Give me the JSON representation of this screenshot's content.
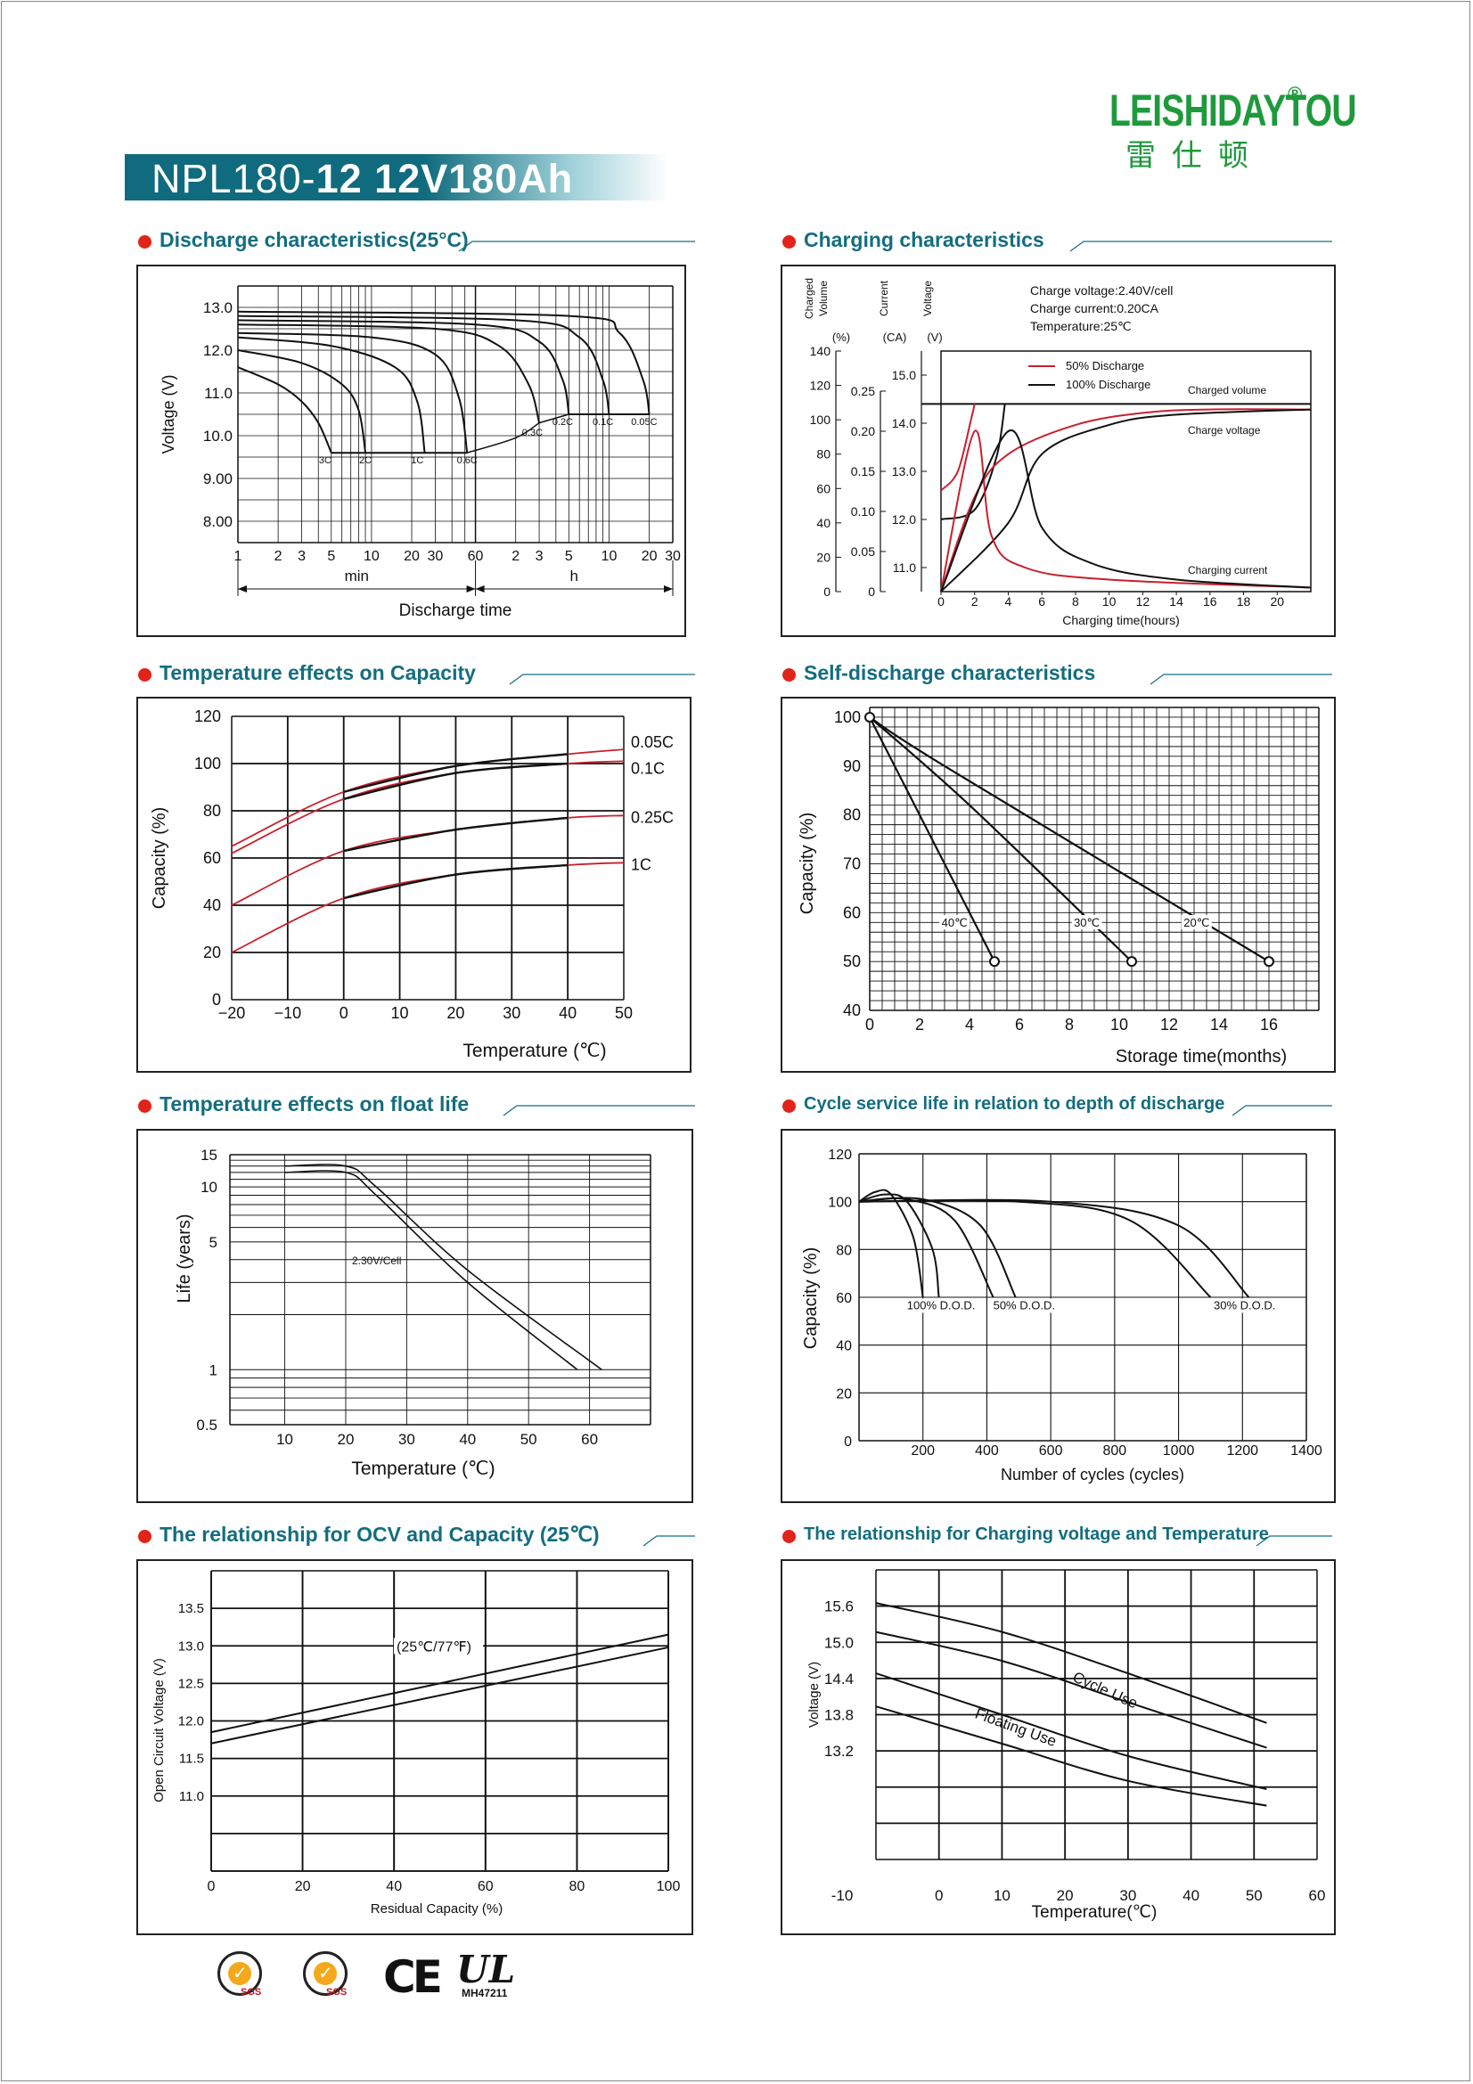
{
  "brand": {
    "logo_text": "LEISHIDAYTOU",
    "logo_mark": "®",
    "logo_cn": "雷仕顿"
  },
  "header": {
    "model": "NPL180-",
    "model_bold": "12 12V180Ah"
  },
  "colors": {
    "accent_teal": "#146d80",
    "bullet_red": "#e2231a",
    "curve_red": "#c8202c",
    "logo_green": "#1e9a3c"
  },
  "sections": {
    "discharge": "Discharge characteristics(25°C)",
    "charging": "Charging characteristics",
    "temp_capacity": "Temperature effects on Capacity",
    "self_discharge": "Self-discharge characteristics",
    "float_life": "Temperature effects on float life",
    "cycle_life": "Cycle service life in relation to depth of discharge",
    "ocv": "The relationship  for OCV and Capacity (25℃)",
    "charge_temp": "The relationship for Charging voltage and Temperature"
  },
  "chart_data": [
    {
      "id": "discharge",
      "type": "line",
      "ylabel": "Voltage (V)",
      "xlabel": "Discharge time",
      "x_unit_labels": [
        "min",
        "h"
      ],
      "xscale": "log",
      "xticks_min": [
        "1",
        "2",
        "3",
        "5",
        "10",
        "20",
        "30",
        "60"
      ],
      "xticks_h": [
        "2",
        "3",
        "5",
        "10",
        "20",
        "30"
      ],
      "yticks": [
        "13.0",
        "12.0",
        "11.0",
        "10.0",
        "9.00",
        "8.00"
      ],
      "ylim": [
        7.5,
        13.5
      ],
      "series": [
        {
          "name": "3C",
          "end_voltage": 9.6,
          "points": [
            [
              1,
              11.6
            ],
            [
              2,
              11.2
            ],
            [
              3,
              10.8
            ],
            [
              4,
              10.3
            ],
            [
              5,
              9.6
            ]
          ]
        },
        {
          "name": "2C",
          "end_voltage": 9.6,
          "points": [
            [
              1,
              12.0
            ],
            [
              3,
              11.7
            ],
            [
              6,
              11.2
            ],
            [
              8,
              10.6
            ],
            [
              9,
              9.6
            ]
          ]
        },
        {
          "name": "1C",
          "end_voltage": 9.6,
          "points": [
            [
              1,
              12.3
            ],
            [
              5,
              12.1
            ],
            [
              15,
              11.6
            ],
            [
              22,
              10.8
            ],
            [
              25,
              9.6
            ]
          ]
        },
        {
          "name": "0.6C",
          "end_voltage": 9.6,
          "points": [
            [
              1,
              12.4
            ],
            [
              10,
              12.3
            ],
            [
              30,
              11.9
            ],
            [
              45,
              10.9
            ],
            [
              52,
              9.6
            ]
          ]
        },
        {
          "name": "0.3C",
          "end_voltage": 10.3,
          "points": [
            [
              1,
              12.6
            ],
            [
              30,
              12.5
            ],
            [
              90,
              12.1
            ],
            [
              150,
              11.2
            ],
            [
              180,
              10.3
            ]
          ]
        },
        {
          "name": "0.2C",
          "end_voltage": 10.5,
          "points": [
            [
              1,
              12.7
            ],
            [
              60,
              12.6
            ],
            [
              180,
              12.2
            ],
            [
              270,
              11.3
            ],
            [
              300,
              10.5
            ]
          ]
        },
        {
          "name": "0.1C",
          "end_voltage": 10.5,
          "points": [
            [
              1,
              12.8
            ],
            [
              120,
              12.7
            ],
            [
              360,
              12.3
            ],
            [
              540,
              11.3
            ],
            [
              600,
              10.5
            ]
          ]
        },
        {
          "name": "0.05C",
          "end_voltage": 10.5,
          "points": [
            [
              1,
              12.9
            ],
            [
              300,
              12.8
            ],
            [
              720,
              12.4
            ],
            [
              1080,
              11.3
            ],
            [
              1200,
              10.5
            ]
          ]
        }
      ]
    },
    {
      "id": "charging",
      "type": "line",
      "xlabel": "Charging time(hours)",
      "xticks": [
        "0",
        "2",
        "4",
        "6",
        "8",
        "10",
        "12",
        "14",
        "16",
        "18",
        "20"
      ],
      "axis_labels": [
        "Charged Volume",
        "Current",
        "Voltage"
      ],
      "axis_units": [
        "(%)",
        "(CA)",
        "(V)"
      ],
      "y_volume_ticks": [
        "140",
        "120",
        "100",
        "80",
        "60",
        "40",
        "20",
        "0"
      ],
      "y_current_ticks": [
        "0.25",
        "0.20",
        "0.15",
        "0.10",
        "0.05",
        "0"
      ],
      "y_voltage_ticks": [
        "15.0",
        "14.0",
        "13.0",
        "12.0",
        "11.0"
      ],
      "notes": [
        "Charge voltage:2.40V/cell",
        "Charge current:0.20CA",
        "Temperature:25℃"
      ],
      "legend": [
        "50% Discharge",
        "100% Discharge"
      ],
      "curve_labels": [
        "Charged volume",
        "Charge voltage",
        "Charging current"
      ],
      "charge_voltage": 14.4,
      "charge_current": 0.2,
      "series": [
        {
          "name": "50% Discharge",
          "curve": "Charged volume",
          "points": [
            [
              0,
              0
            ],
            [
              2,
              55
            ],
            [
              4,
              80
            ],
            [
              8,
              97
            ],
            [
              12,
              104
            ],
            [
              16,
              106
            ],
            [
              22,
              106
            ]
          ]
        },
        {
          "name": "100% Discharge",
          "curve": "Charged volume",
          "points": [
            [
              0,
              0
            ],
            [
              4,
              40
            ],
            [
              6,
              80
            ],
            [
              10,
              97
            ],
            [
              14,
              103
            ],
            [
              22,
              106
            ]
          ]
        },
        {
          "name": "50% Discharge",
          "curve": "Charging current",
          "points": [
            [
              0,
              0
            ],
            [
              2,
              0.2
            ],
            [
              3,
              0.07
            ],
            [
              5,
              0.03
            ],
            [
              10,
              0.015
            ],
            [
              22,
              0.005
            ]
          ]
        },
        {
          "name": "100% Discharge",
          "curve": "Charging current",
          "points": [
            [
              0,
              0
            ],
            [
              4,
              0.2
            ],
            [
              6,
              0.08
            ],
            [
              9,
              0.035
            ],
            [
              14,
              0.015
            ],
            [
              22,
              0.005
            ]
          ]
        }
      ]
    },
    {
      "id": "temp_capacity",
      "type": "line",
      "xlabel": "Temperature (℃)",
      "ylabel": "Capacity  (%)",
      "xticks": [
        "-20",
        "-10",
        "0",
        "10",
        "20",
        "30",
        "40",
        "50"
      ],
      "yticks": [
        "0",
        "20",
        "40",
        "60",
        "80",
        "100",
        "120"
      ],
      "xlim": [
        -20,
        50
      ],
      "ylim": [
        0,
        120
      ],
      "series": [
        {
          "name": "0.05C",
          "points": [
            [
              -20,
              65
            ],
            [
              0,
              88
            ],
            [
              20,
              99
            ],
            [
              40,
              104
            ],
            [
              50,
              106
            ]
          ]
        },
        {
          "name": "0.1C",
          "points": [
            [
              -20,
              62
            ],
            [
              0,
              85
            ],
            [
              20,
              96
            ],
            [
              40,
              100
            ],
            [
              50,
              101
            ]
          ]
        },
        {
          "name": "0.25C",
          "points": [
            [
              -20,
              40
            ],
            [
              0,
              63
            ],
            [
              20,
              72
            ],
            [
              40,
              77
            ],
            [
              50,
              78
            ]
          ]
        },
        {
          "name": "1C",
          "points": [
            [
              -20,
              20
            ],
            [
              0,
              43
            ],
            [
              20,
              53
            ],
            [
              40,
              57
            ],
            [
              50,
              58
            ]
          ]
        }
      ]
    },
    {
      "id": "self_discharge",
      "type": "line",
      "xlabel": "Storage time(months)",
      "ylabel": "Capacity  (%)",
      "xticks": [
        "0",
        "2",
        "4",
        "6",
        "8",
        "10",
        "12",
        "14",
        "16"
      ],
      "yticks": [
        "40",
        "50",
        "60",
        "70",
        "80",
        "90",
        "100"
      ],
      "xlim": [
        0,
        18
      ],
      "ylim": [
        40,
        102
      ],
      "series": [
        {
          "name": "40℃",
          "points": [
            [
              0,
              100
            ],
            [
              5,
              50
            ]
          ]
        },
        {
          "name": "30℃",
          "points": [
            [
              0,
              100
            ],
            [
              10.5,
              50
            ]
          ]
        },
        {
          "name": "20℃",
          "points": [
            [
              0,
              100
            ],
            [
              16,
              50
            ]
          ]
        }
      ]
    },
    {
      "id": "float_life",
      "type": "line",
      "xlabel": "Temperature (℃)",
      "ylabel": "Life (years)",
      "yscale": "log",
      "xticks": [
        "10",
        "20",
        "30",
        "40",
        "50",
        "60"
      ],
      "yticks": [
        "0.5",
        "1",
        "5",
        "10",
        "15"
      ],
      "xlim": [
        1,
        70
      ],
      "ylim": [
        0.5,
        15
      ],
      "annotation": "2.30V/Cell",
      "series": [
        {
          "name": "upper",
          "points": [
            [
              10,
              13
            ],
            [
              20,
              13
            ],
            [
              25,
              10
            ],
            [
              40,
              3.5
            ],
            [
              62,
              1
            ]
          ]
        },
        {
          "name": "lower",
          "points": [
            [
              10,
              12
            ],
            [
              20,
              12
            ],
            [
              25,
              9
            ],
            [
              40,
              3
            ],
            [
              58,
              1
            ]
          ]
        }
      ]
    },
    {
      "id": "cycle_life",
      "type": "line",
      "xlabel": "Number of cycles (cycles)",
      "ylabel": "Capacity  (%)",
      "xticks": [
        "200",
        "400",
        "600",
        "800",
        "1000",
        "1200",
        "1400"
      ],
      "yticks": [
        "0",
        "20",
        "40",
        "60",
        "80",
        "100",
        "120"
      ],
      "xlim": [
        0,
        1400
      ],
      "ylim": [
        0,
        120
      ],
      "labels": [
        "100% D.O.D.",
        "50% D.O.D.",
        "30% D.O.D."
      ],
      "series": [
        {
          "name": "100% D.O.D.",
          "points": [
            [
              0,
              100
            ],
            [
              50,
              104
            ],
            [
              100,
              103
            ],
            [
              170,
              85
            ],
            [
              200,
              60
            ]
          ]
        },
        {
          "name": "100% D.O.D.",
          "points": [
            [
              0,
              100
            ],
            [
              80,
              103
            ],
            [
              150,
              100
            ],
            [
              230,
              80
            ],
            [
              250,
              60
            ]
          ]
        },
        {
          "name": "50% D.O.D.",
          "points": [
            [
              0,
              100
            ],
            [
              150,
              101
            ],
            [
              300,
              92
            ],
            [
              420,
              60
            ]
          ]
        },
        {
          "name": "50% D.O.D.",
          "points": [
            [
              0,
              100
            ],
            [
              200,
              101
            ],
            [
              380,
              90
            ],
            [
              490,
              60
            ]
          ]
        },
        {
          "name": "30% D.O.D.",
          "points": [
            [
              0,
              100
            ],
            [
              500,
              100
            ],
            [
              850,
              92
            ],
            [
              1100,
              60
            ]
          ]
        },
        {
          "name": "30% D.O.D.",
          "points": [
            [
              0,
              100
            ],
            [
              600,
              100
            ],
            [
              1000,
              90
            ],
            [
              1220,
              60
            ]
          ]
        }
      ]
    },
    {
      "id": "ocv",
      "type": "line",
      "xlabel": "Residual Capacity (%)",
      "ylabel": "Open Circuit Voltage (V)",
      "xticks": [
        "0",
        "20",
        "40",
        "60",
        "80",
        "100"
      ],
      "yticks": [
        "11.0",
        "11.5",
        "12.0",
        "12.5",
        "13.0",
        "13.5"
      ],
      "xlim": [
        0,
        100
      ],
      "ylim": [
        10.0,
        14.0
      ],
      "annotation": "(25℃/77℉)",
      "series": [
        {
          "name": "upper",
          "points": [
            [
              0,
              11.85
            ],
            [
              100,
              13.15
            ]
          ]
        },
        {
          "name": "lower",
          "points": [
            [
              0,
              11.7
            ],
            [
              100,
              12.98
            ]
          ]
        }
      ]
    },
    {
      "id": "charge_temp",
      "type": "line",
      "xlabel": "Temperature(℃)",
      "ylabel": "Voltage (V)",
      "xticks": [
        "-10",
        "0",
        "10",
        "20",
        "30",
        "40",
        "50",
        "60"
      ],
      "yticks": [
        "13.2",
        "13.8",
        "14.4",
        "15.0",
        "15.6"
      ],
      "xlim": [
        -10,
        60
      ],
      "ylim": [
        12.5,
        16.0
      ],
      "labels": [
        "Cycle Use",
        "Floating Use"
      ],
      "series": [
        {
          "name": "Cycle Use",
          "points": [
            [
              -10,
              15.6
            ],
            [
              10,
              15.25
            ],
            [
              30,
              14.75
            ],
            [
              52,
              14.15
            ]
          ]
        },
        {
          "name": "Cycle Use",
          "points": [
            [
              -10,
              15.25
            ],
            [
              10,
              14.9
            ],
            [
              30,
              14.4
            ],
            [
              52,
              13.85
            ]
          ]
        },
        {
          "name": "Floating Use",
          "points": [
            [
              -10,
              14.75
            ],
            [
              10,
              14.25
            ],
            [
              30,
              13.75
            ],
            [
              52,
              13.35
            ]
          ]
        },
        {
          "name": "Floating Use",
          "points": [
            [
              -10,
              14.35
            ],
            [
              10,
              13.9
            ],
            [
              30,
              13.45
            ],
            [
              52,
              13.15
            ]
          ]
        }
      ]
    }
  ],
  "certifications": {
    "sgs_label": "SGS",
    "ce_label": "CE",
    "ul_label": "UL",
    "ul_code": "MH47211"
  }
}
